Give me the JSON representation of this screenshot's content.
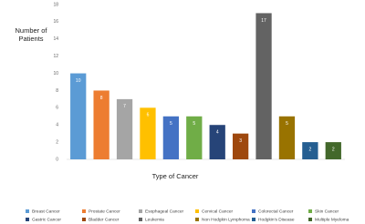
{
  "chart_data": {
    "type": "bar",
    "ylabel": "Number of Patients",
    "xlabel": "Type of Cancer",
    "categories": [
      "Breast Cancer",
      "Prostate Cancer",
      "Esophageal Cancer",
      "Cervical Cancer",
      "Colorectal Cancer",
      "Skin Cancer",
      "Gastric Cancer",
      "Bladder Cancer",
      "Leukemia",
      "Non Hodgkin Lymphoma",
      "Hodgkin's Disease",
      "Multiple Myeloma"
    ],
    "values": [
      10,
      8,
      7,
      6,
      5,
      5,
      4,
      3,
      17,
      5,
      2,
      2
    ],
    "colors": [
      "#5b9bd5",
      "#ed7d31",
      "#a5a5a5",
      "#ffc000",
      "#4472c4",
      "#70ad47",
      "#264478",
      "#9e480e",
      "#636363",
      "#997300",
      "#255e91",
      "#43682b"
    ],
    "ylim": [
      0,
      18
    ],
    "yticks": [
      0,
      2,
      4,
      6,
      8,
      10,
      12,
      14,
      16,
      18
    ],
    "grid": false,
    "legend": "bottom"
  }
}
